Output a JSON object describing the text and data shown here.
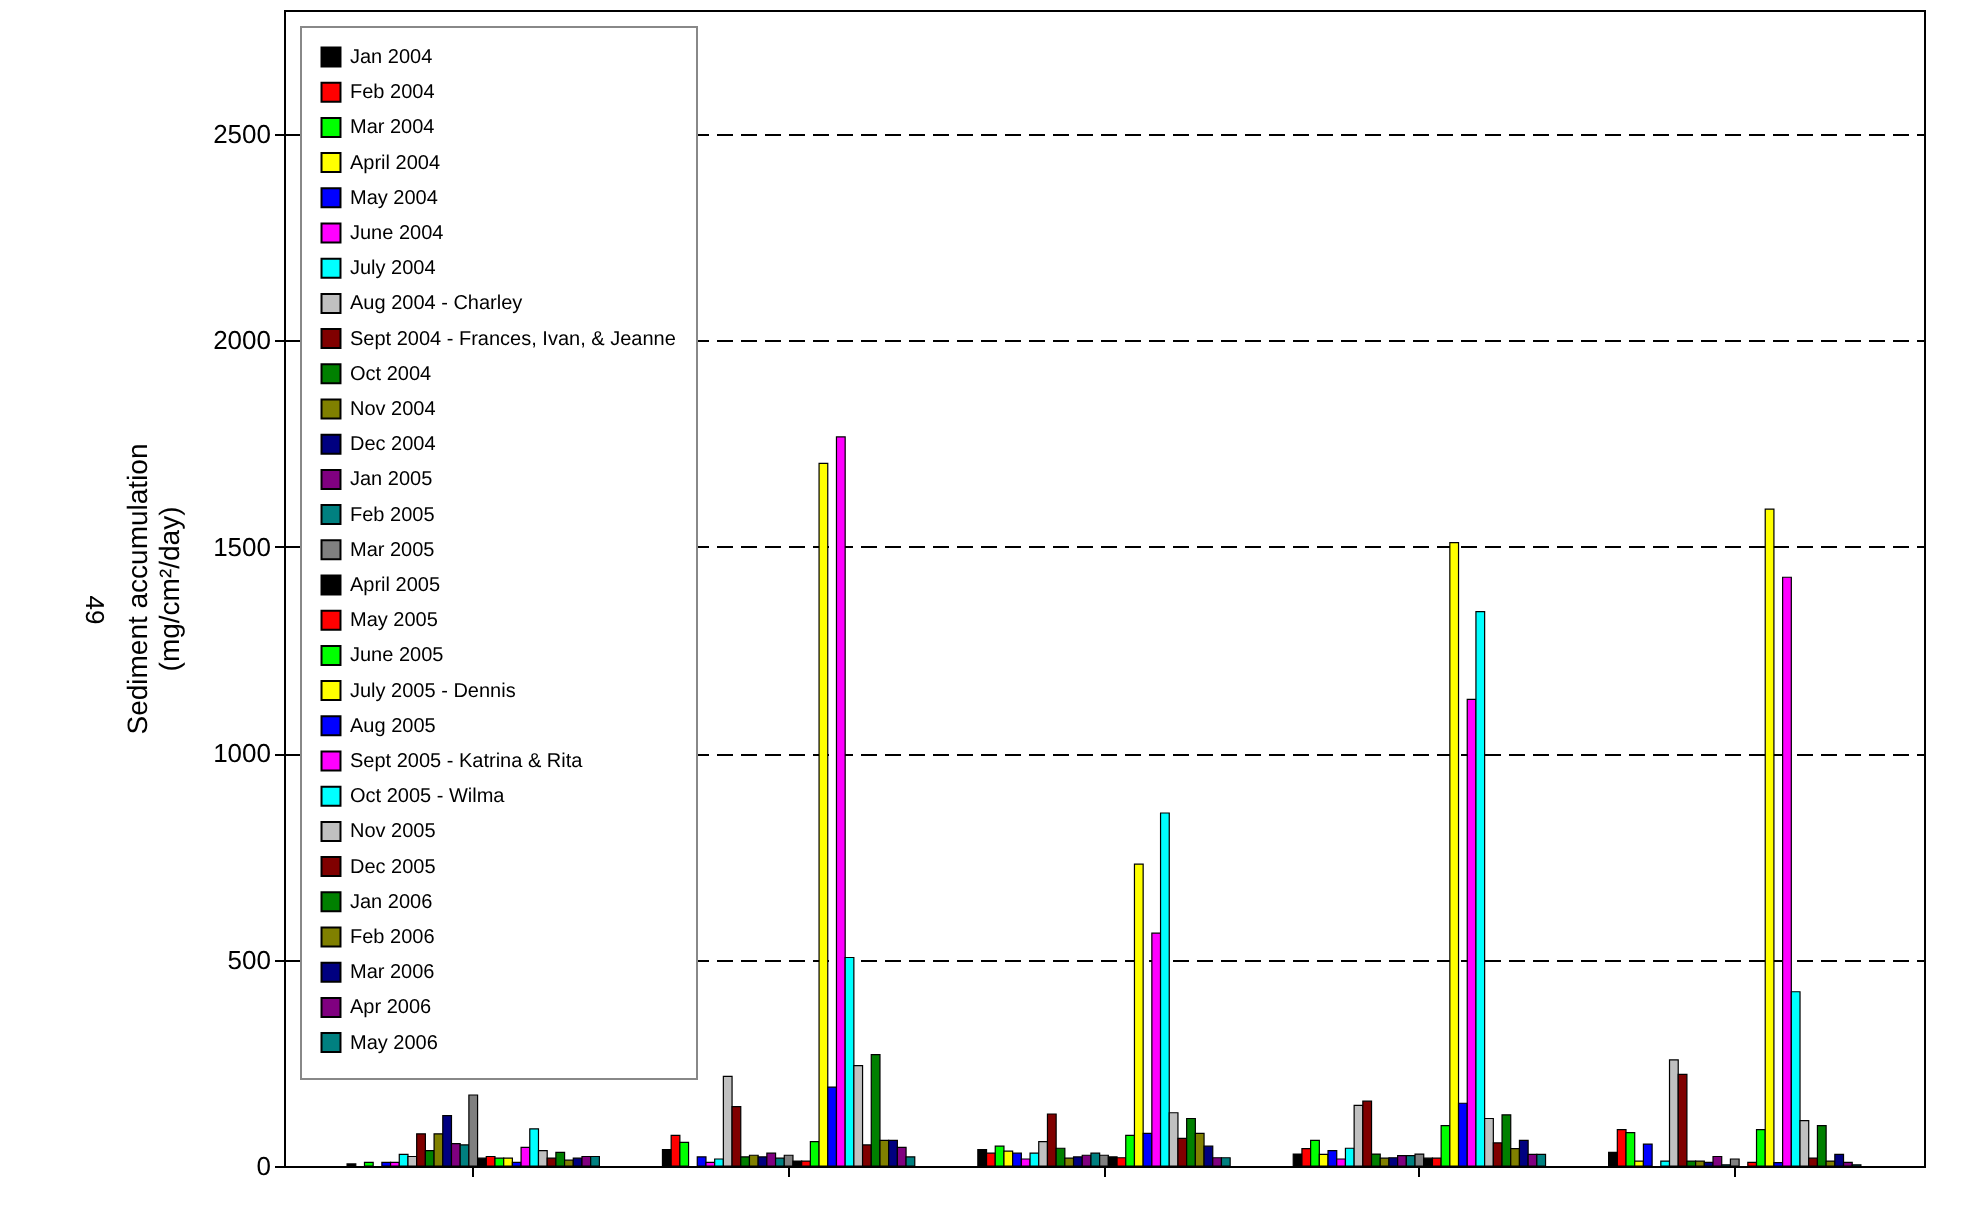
{
  "chart_data": {
    "type": "bar",
    "ylabel": "Sediment accumulation\n(mg/cm²/day)",
    "annotations": [
      "49"
    ],
    "categories": [
      null,
      null,
      null,
      null,
      null
    ],
    "ylim": [
      0,
      2800
    ],
    "yticks": [
      0,
      500,
      1000,
      1500,
      2000,
      2500
    ],
    "grid": "y",
    "legend": "top left",
    "series": [
      {
        "name": "Jan 2004",
        "color": "#000000",
        "values": [
          5,
          40,
          40,
          29,
          33
        ]
      },
      {
        "name": "Feb 2004",
        "color": "#ff0000",
        "values": [
          null,
          74,
          31,
          42,
          88
        ]
      },
      {
        "name": "Mar 2004",
        "color": "#00ff00",
        "values": [
          9,
          57,
          48,
          62,
          81
        ]
      },
      {
        "name": "April 2004",
        "color": "#ffff00",
        "values": [
          null,
          null,
          36,
          28,
          12
        ]
      },
      {
        "name": "May 2004",
        "color": "#0000ff",
        "values": [
          9,
          22,
          31,
          37,
          53
        ]
      },
      {
        "name": "June 2004",
        "color": "#ff00ff",
        "values": [
          9,
          9,
          17,
          17,
          null
        ]
      },
      {
        "name": "July 2004",
        "color": "#00ffff",
        "values": [
          28,
          17,
          31,
          43,
          12
        ]
      },
      {
        "name": "Aug 2004 - Charley",
        "color": "#c0c0c0",
        "values": [
          23,
          217,
          59,
          147,
          257
        ]
      },
      {
        "name": "Sept 2004 - Frances, Ivan, & Jeanne",
        "color": "#800000",
        "values": [
          78,
          144,
          126,
          157,
          222
        ]
      },
      {
        "name": "Oct 2004",
        "color": "#008000",
        "values": [
          37,
          22,
          43,
          29,
          12
        ]
      },
      {
        "name": "Nov 2004",
        "color": "#808000",
        "values": [
          78,
          26,
          19,
          19,
          12
        ]
      },
      {
        "name": "Dec 2004",
        "color": "#000080",
        "values": [
          122,
          22,
          22,
          20,
          9
        ]
      },
      {
        "name": "Jan 2005",
        "color": "#800080",
        "values": [
          54,
          31,
          26,
          25,
          23
        ]
      },
      {
        "name": "Feb 2005",
        "color": "#008080",
        "values": [
          51,
          19,
          31,
          25,
          3
        ]
      },
      {
        "name": "Mar 2005",
        "color": "#808080",
        "values": [
          172,
          26,
          26,
          29,
          17
        ]
      },
      {
        "name": "April 2005",
        "color": "#000000",
        "values": [
          19,
          12,
          22,
          19,
          null
        ]
      },
      {
        "name": "May 2005",
        "color": "#ff0000",
        "values": [
          23,
          12,
          20,
          19,
          9
        ]
      },
      {
        "name": "June 2005",
        "color": "#00ff00",
        "values": [
          19,
          59,
          74,
          98,
          88
        ]
      },
      {
        "name": "July 2005 - Dennis",
        "color": "#ffff00",
        "values": [
          19,
          1702,
          731,
          1510,
          1591
        ]
      },
      {
        "name": "Aug 2005",
        "color": "#0000ff",
        "values": [
          9,
          191,
          79,
          152,
          8
        ]
      },
      {
        "name": "Sept 2005 - Katrina & Rita",
        "color": "#ff00ff",
        "values": [
          45,
          1766,
          564,
          1130,
          1426
        ]
      },
      {
        "name": "Oct 2005 - Wilma",
        "color": "#00ffff",
        "values": [
          90,
          505,
          855,
          1343,
          422
        ]
      },
      {
        "name": "Nov 2005",
        "color": "#c0c0c0",
        "values": [
          37,
          243,
          129,
          115,
          110
        ]
      },
      {
        "name": "Dec 2005",
        "color": "#800000",
        "values": [
          19,
          51,
          67,
          56,
          19
        ]
      },
      {
        "name": "Jan 2006",
        "color": "#008000",
        "values": [
          33,
          270,
          115,
          124,
          98
        ]
      },
      {
        "name": "Feb 2006",
        "color": "#808000",
        "values": [
          14,
          62,
          79,
          42,
          12
        ]
      },
      {
        "name": "Mar 2006",
        "color": "#000080",
        "values": [
          19,
          62,
          48,
          62,
          28
        ]
      },
      {
        "name": "Apr 2006",
        "color": "#800080",
        "values": [
          23,
          45,
          20,
          28,
          9
        ]
      },
      {
        "name": "May 2006",
        "color": "#008080",
        "values": [
          23,
          22,
          20,
          28,
          3
        ]
      }
    ]
  }
}
